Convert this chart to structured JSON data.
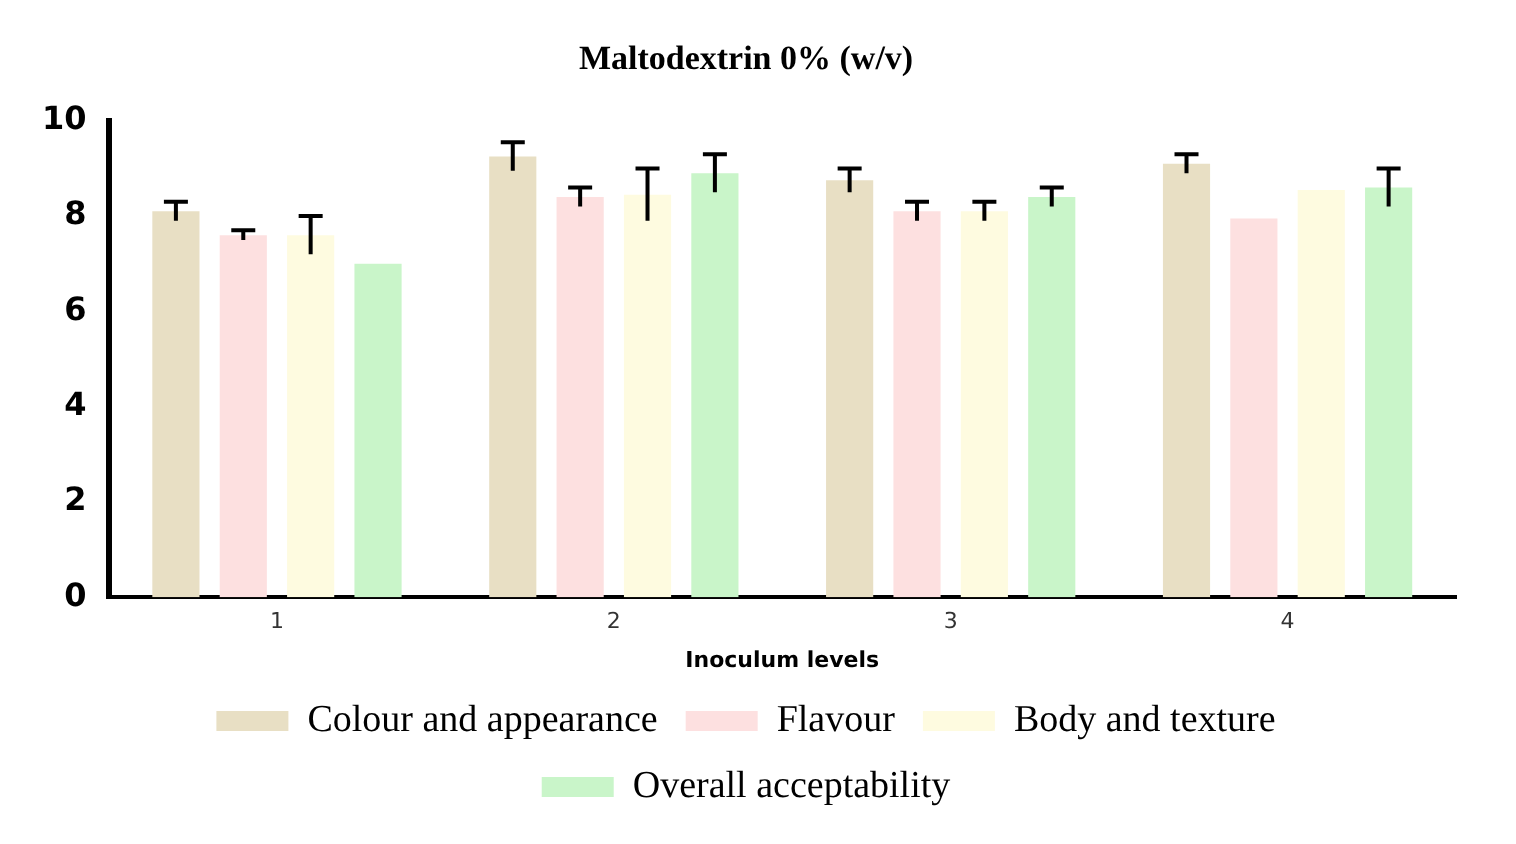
{
  "chart_data": {
    "type": "bar",
    "title": "Maltodextrin 0% (w/v)",
    "xlabel": "Inoculum levels",
    "categories": [
      "1",
      "2",
      "3",
      "4"
    ],
    "series": [
      {
        "name": "Colour and appearance",
        "color": "#e8dfc4",
        "values": [
          8.1,
          9.25,
          8.75,
          9.1
        ],
        "errors": [
          0.2,
          0.3,
          0.25,
          0.2
        ]
      },
      {
        "name": "Flavour",
        "color": "#fde0e0",
        "values": [
          7.6,
          8.4,
          8.1,
          7.95
        ],
        "errors": [
          0.1,
          0.2,
          0.2,
          null
        ]
      },
      {
        "name": "Body and texture",
        "color": "#fefbe0",
        "values": [
          7.6,
          8.45,
          8.1,
          8.55
        ],
        "errors": [
          0.4,
          0.55,
          0.2,
          null
        ]
      },
      {
        "name": "Overall acceptability",
        "color": "#c9f5c9",
        "values": [
          7.0,
          8.9,
          8.4,
          8.6
        ],
        "errors": [
          null,
          0.4,
          0.2,
          0.4
        ]
      }
    ],
    "ylim": [
      0,
      10
    ],
    "yticks": [
      0,
      2,
      4,
      6,
      8,
      10
    ],
    "grid": false,
    "legend": "bottom"
  }
}
